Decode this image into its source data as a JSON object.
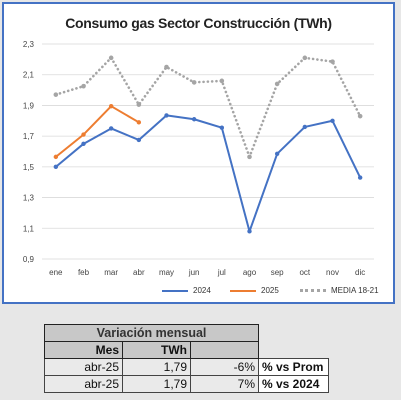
{
  "chart_data": {
    "type": "line",
    "title": "Consumo gas Sector Construcción (TWh)",
    "categories": [
      "ene",
      "feb",
      "mar",
      "abr",
      "may",
      "jun",
      "jul",
      "ago",
      "sep",
      "oct",
      "nov",
      "dic"
    ],
    "ylim": [
      0.9,
      2.3
    ],
    "yticks": [
      "0,9",
      "1,1",
      "1,3",
      "1,5",
      "1,7",
      "1,9",
      "2,1",
      "2,3"
    ],
    "grid": true,
    "legend_position": "bottom",
    "series": [
      {
        "name": "2024",
        "color": "#4472c4",
        "style": "solid",
        "values": [
          1.5,
          1.65,
          1.75,
          1.675,
          1.835,
          1.81,
          1.755,
          1.08,
          1.585,
          1.76,
          1.8,
          1.43
        ]
      },
      {
        "name": "2025",
        "color": "#ed7d31",
        "style": "solid",
        "values": [
          1.565,
          1.71,
          1.895,
          1.79,
          null,
          null,
          null,
          null,
          null,
          null,
          null,
          null
        ]
      },
      {
        "name": "MEDIA 18-21",
        "color": "#a5a5a5",
        "style": "dotted",
        "values": [
          1.97,
          2.025,
          2.21,
          1.905,
          2.15,
          2.05,
          2.06,
          1.565,
          2.04,
          2.21,
          2.185,
          1.83
        ]
      }
    ]
  },
  "table": {
    "title": "Variación mensual",
    "header": {
      "mes": "Mes",
      "twh": "TWh"
    },
    "rows": [
      {
        "mes": "abr-25",
        "twh": "1,79",
        "pct": "-6%",
        "note": "% vs Prom"
      },
      {
        "mes": "abr-25",
        "twh": "1,79",
        "pct": "7%",
        "note": "% vs 2024"
      }
    ]
  }
}
